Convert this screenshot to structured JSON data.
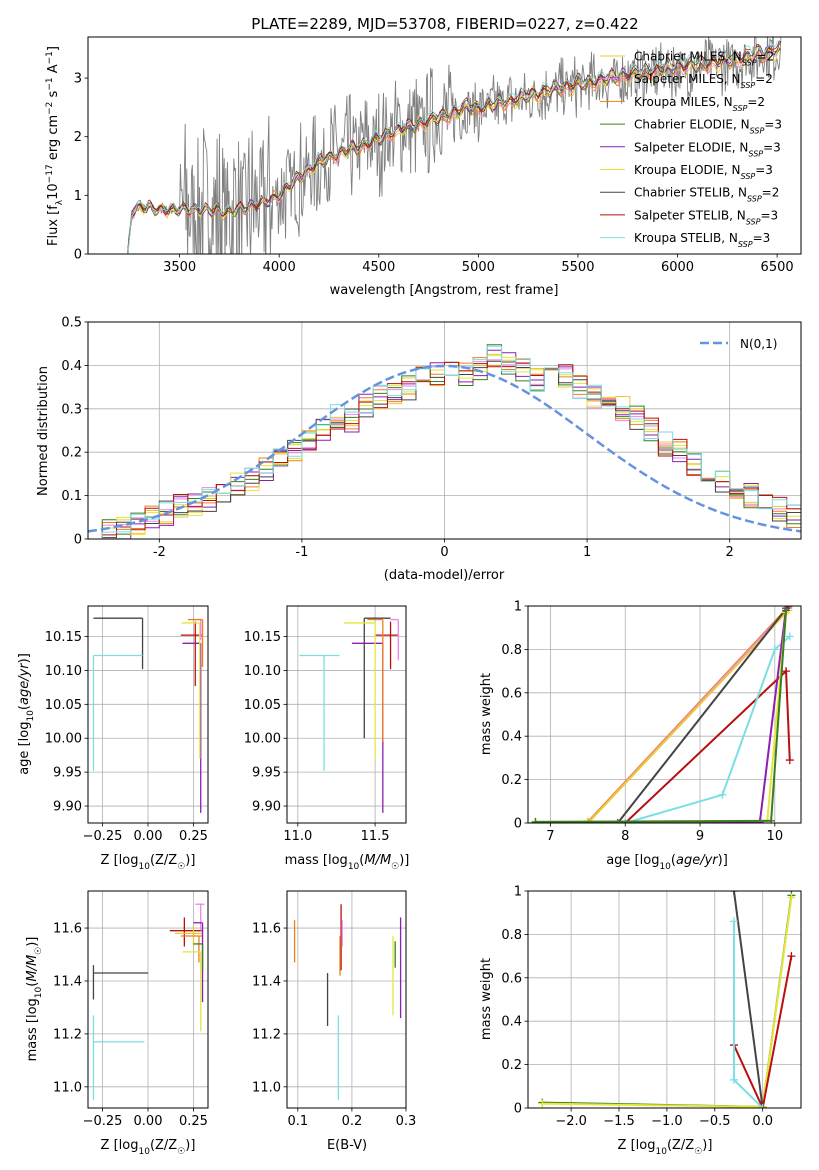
{
  "figure": {
    "title": "PLATE=2289, MJD=53708, FIBERID=0227, z=0.422"
  },
  "colors": {
    "Chabrier MILES": "#e7cc2f",
    "Salpeter MILES": "#ee82ee",
    "Kroupa MILES": "#ef7f1a",
    "Chabrier ELODIE": "#3a7d22",
    "Salpeter ELODIE": "#8d1eb0",
    "Kroupa ELODIE": "#e5e63a",
    "Chabrier STELIB": "#444444",
    "Salpeter STELIB": "#b80f0f",
    "Kroupa STELIB": "#7adfe3",
    "gauss": "#6693e0",
    "grid": "#b0b0b0"
  },
  "chart_data": [
    {
      "id": "spectrum",
      "type": "line",
      "title": "PLATE=2289, MJD=53708, FIBERID=0227, z=0.422",
      "xlabel": "wavelength [Angstrom, rest frame]",
      "ylabel": "Flux [f_λ 10^-17 erg cm^-2 s^-1 A^-1]",
      "xlim": [
        3040,
        6620
      ],
      "ylim": [
        0,
        3.7
      ],
      "xticks": [
        3500,
        4000,
        4500,
        5000,
        5500,
        6000,
        6500
      ],
      "yticks": [
        0,
        1,
        2,
        3
      ],
      "grid": false,
      "legend": "top-right",
      "model_anchors": {
        "x": [
          3240,
          3260,
          3300,
          3400,
          3500,
          3600,
          3700,
          3750,
          3800,
          3850,
          3900,
          3950,
          4000,
          4100,
          4200,
          4300,
          4400,
          4500,
          4600,
          4700,
          4800,
          4850,
          4900,
          4950,
          5000,
          5100,
          5200,
          5300,
          5400,
          5500,
          5600,
          5700,
          5800,
          5900,
          6000,
          6100,
          6200,
          6300,
          6400,
          6500
        ],
        "y": [
          0.0,
          0.72,
          0.8,
          0.75,
          0.76,
          0.75,
          0.73,
          0.7,
          0.78,
          0.8,
          0.85,
          0.9,
          1.0,
          1.3,
          1.55,
          1.7,
          1.8,
          1.95,
          2.1,
          2.2,
          2.3,
          2.35,
          2.42,
          2.5,
          2.45,
          2.55,
          2.62,
          2.72,
          2.8,
          2.88,
          2.92,
          3.0,
          3.05,
          3.1,
          3.17,
          3.2,
          3.25,
          3.3,
          3.38,
          3.45
        ]
      },
      "legend_entries": [
        {
          "label": "Chabrier MILES, N_SSP=2",
          "name": "Chabrier MILES",
          "nssp": "2"
        },
        {
          "label": "Salpeter MILES, N_SSP=2",
          "name": "Salpeter MILES",
          "nssp": "2"
        },
        {
          "label": "Kroupa MILES, N_SSP=2",
          "name": "Kroupa MILES",
          "nssp": "2"
        },
        {
          "label": "Chabrier ELODIE, N_SSP=3",
          "name": "Chabrier ELODIE",
          "nssp": "3"
        },
        {
          "label": "Salpeter ELODIE, N_SSP=3",
          "name": "Salpeter ELODIE",
          "nssp": "3"
        },
        {
          "label": "Kroupa ELODIE, N_SSP=3",
          "name": "Kroupa ELODIE",
          "nssp": "3"
        },
        {
          "label": "Chabrier STELIB, N_SSP=2",
          "name": "Chabrier STELIB",
          "nssp": "2"
        },
        {
          "label": "Salpeter STELIB, N_SSP=3",
          "name": "Salpeter STELIB",
          "nssp": "3"
        },
        {
          "label": "Kroupa STELIB, N_SSP=3",
          "name": "Kroupa STELIB",
          "nssp": "3"
        }
      ]
    },
    {
      "id": "residuals",
      "type": "line",
      "xlabel": "(data-model)/error",
      "ylabel": "Normed distribution",
      "xlim": [
        -2.5,
        2.5
      ],
      "ylim": [
        0,
        0.5
      ],
      "xticks": [
        -2,
        -1,
        0,
        1,
        2
      ],
      "yticks": [
        0.0,
        0.1,
        0.2,
        0.3,
        0.4,
        0.5
      ],
      "grid": true,
      "legend": "top-right",
      "gauss_label": "N(0,1)",
      "bin_width": 0.1,
      "hist_first_bin_left": -2.5,
      "hist": [
        0.02,
        0.02,
        0.03,
        0.04,
        0.05,
        0.06,
        0.08,
        0.08,
        0.09,
        0.11,
        0.13,
        0.14,
        0.16,
        0.18,
        0.2,
        0.22,
        0.25,
        0.28,
        0.27,
        0.31,
        0.33,
        0.34,
        0.35,
        0.37,
        0.38,
        0.4,
        0.38,
        0.39,
        0.42,
        0.4,
        0.39,
        0.37,
        0.41,
        0.38,
        0.35,
        0.33,
        0.32,
        0.3,
        0.28,
        0.25,
        0.22,
        0.2,
        0.17,
        0.15,
        0.13,
        0.12,
        0.1,
        0.08,
        0.07,
        0.05
      ]
    },
    {
      "id": "age-vs-z",
      "type": "scatter",
      "xlabel": "Z [log10(Z/Z☉)]",
      "ylabel": "age  [log10(age/yr)]",
      "xlim": [
        -0.33,
        0.33
      ],
      "ylim": [
        9.875,
        10.195
      ],
      "xticks": [
        -0.25,
        0.0,
        0.25
      ],
      "xticklabels": [
        "−0.25",
        "0.00",
        "0.25"
      ],
      "yticks": [
        9.9,
        9.95,
        10.0,
        10.05,
        10.1,
        10.15
      ],
      "yticklabels": [
        "9.90",
        "9.95",
        "10.00",
        "10.05",
        "10.10",
        "10.15"
      ],
      "grid": true,
      "points": [
        {
          "model": "Chabrier STELIB",
          "x": -0.03,
          "xerr": [
            0.27,
            0.0
          ],
          "y": 10.177,
          "yerr": [
            0.075,
            0.0
          ]
        },
        {
          "model": "Kroupa STELIB",
          "x": -0.3,
          "xerr": [
            0.0,
            0.27
          ],
          "y": 10.122,
          "yerr": [
            0.17,
            0.0
          ]
        },
        {
          "model": "Salpeter STELIB",
          "x": 0.26,
          "xerr": [
            0.08,
            0.04
          ],
          "y": 10.152,
          "yerr": [
            0.075,
            0.02
          ]
        },
        {
          "model": "Salpeter ELODIE",
          "x": 0.29,
          "xerr": [
            0.1,
            0.0
          ],
          "y": 10.14,
          "yerr": [
            0.25,
            0.0
          ]
        },
        {
          "model": "Kroupa ELODIE",
          "x": 0.285,
          "xerr": [
            0.1,
            0.0
          ],
          "y": 10.17,
          "yerr": [
            0.2,
            0.0
          ]
        },
        {
          "model": "Salpeter MILES",
          "x": 0.29,
          "xerr": [
            0.05,
            0.0
          ],
          "y": 10.175,
          "yerr": [
            0.03,
            0.0
          ]
        },
        {
          "model": "Kroupa MILES",
          "x": 0.3,
          "xerr": [
            0.08,
            0.0
          ],
          "y": 10.175,
          "yerr": [
            0.07,
            0.0
          ]
        }
      ]
    },
    {
      "id": "age-vs-mass",
      "type": "scatter",
      "xlabel": "mass [log10(M/M☉)]",
      "ylabel": "",
      "xlim": [
        10.93,
        11.7
      ],
      "ylim": [
        9.875,
        10.195
      ],
      "xticks": [
        11.0,
        11.5
      ],
      "xticklabels": [
        "11.0",
        "11.5"
      ],
      "yticks": [
        9.9,
        9.95,
        10.0,
        10.05,
        10.1,
        10.15
      ],
      "yticklabels": [
        "9.90",
        "9.95",
        "10.00",
        "10.05",
        "10.10",
        "10.15"
      ],
      "grid": true,
      "points": [
        {
          "model": "Chabrier STELIB",
          "x": 11.43,
          "xerr": [
            0.0,
            0.17
          ],
          "y": 10.177,
          "yerr": [
            0.177,
            0.0
          ]
        },
        {
          "model": "Kroupa STELIB",
          "x": 11.17,
          "xerr": [
            0.16,
            0.1
          ],
          "y": 10.122,
          "yerr": [
            0.17,
            0.0
          ]
        },
        {
          "model": "Salpeter STELIB",
          "x": 11.6,
          "xerr": [
            0.1,
            0.05
          ],
          "y": 10.152,
          "yerr": [
            0.05,
            0.02
          ]
        },
        {
          "model": "Salpeter ELODIE",
          "x": 11.55,
          "xerr": [
            0.2,
            0.0
          ],
          "y": 10.14,
          "yerr": [
            0.25,
            0.0
          ]
        },
        {
          "model": "Kroupa ELODIE",
          "x": 11.5,
          "xerr": [
            0.2,
            0.0
          ],
          "y": 10.17,
          "yerr": [
            0.2,
            0.0
          ]
        },
        {
          "model": "Salpeter MILES",
          "x": 11.65,
          "xerr": [
            0.05,
            0.0
          ],
          "y": 10.175,
          "yerr": [
            0.06,
            0.0
          ]
        },
        {
          "model": "Kroupa MILES",
          "x": 11.55,
          "xerr": [
            0.1,
            0.0
          ],
          "y": 10.175,
          "yerr": [
            0.18,
            0.0
          ]
        }
      ]
    },
    {
      "id": "weight-vs-age",
      "type": "line",
      "xlabel": "age  [log10(age/yr)]",
      "ylabel": "mass weight",
      "xlim": [
        6.7,
        10.35
      ],
      "ylim": [
        0,
        1
      ],
      "xticks": [
        7,
        8,
        9,
        10
      ],
      "yticks": [
        0.0,
        0.2,
        0.4,
        0.6,
        0.8,
        1.0
      ],
      "grid": true,
      "series": [
        {
          "model": "Kroupa MILES",
          "points": [
            [
              6.8,
              0.0
            ],
            [
              7.5,
              0.005
            ],
            [
              10.18,
              0.995
            ]
          ]
        },
        {
          "model": "Salpeter MILES",
          "points": [
            [
              7.5,
              0.0
            ],
            [
              10.18,
              0.99
            ]
          ]
        },
        {
          "model": "Chabrier MILES",
          "points": [
            [
              7.5,
              0.0
            ],
            [
              10.18,
              0.98
            ]
          ]
        },
        {
          "model": "Chabrier STELIB",
          "points": [
            [
              7.9,
              0.0
            ],
            [
              10.18,
              1.0
            ]
          ]
        },
        {
          "model": "Salpeter STELIB",
          "points": [
            [
              8.0,
              0.0
            ],
            [
              10.15,
              0.7
            ],
            [
              10.2,
              0.29
            ]
          ]
        },
        {
          "model": "Kroupa STELIB",
          "points": [
            [
              8.0,
              0.0
            ],
            [
              9.3,
              0.13
            ],
            [
              10.0,
              0.8
            ],
            [
              10.2,
              0.86
            ]
          ]
        },
        {
          "model": "Salpeter ELODIE",
          "points": [
            [
              6.8,
              0.0
            ],
            [
              9.8,
              0.005
            ],
            [
              10.15,
              0.99
            ]
          ]
        },
        {
          "model": "Kroupa ELODIE",
          "points": [
            [
              6.8,
              0.005
            ],
            [
              9.9,
              0.01
            ],
            [
              10.15,
              0.97
            ]
          ]
        },
        {
          "model": "Chabrier ELODIE",
          "points": [
            [
              6.8,
              0.005
            ],
            [
              9.95,
              0.01
            ],
            [
              10.15,
              0.98
            ]
          ]
        }
      ]
    },
    {
      "id": "mass-vs-z",
      "type": "scatter",
      "xlabel": "Z [log10(Z/Z☉)]",
      "ylabel": "mass [log10(M/M☉)]",
      "xlim": [
        -0.33,
        0.33
      ],
      "ylim": [
        10.92,
        11.74
      ],
      "xticks": [
        -0.25,
        0.0,
        0.25
      ],
      "xticklabels": [
        "−0.25",
        "0.00",
        "0.25"
      ],
      "yticks": [
        11.0,
        11.2,
        11.4,
        11.6
      ],
      "yticklabels": [
        "11.0",
        "11.2",
        "11.4",
        "11.6"
      ],
      "grid": true,
      "points": [
        {
          "model": "Chabrier STELIB",
          "x": -0.3,
          "xerr": [
            0.0,
            0.3
          ],
          "y": 11.43,
          "yerr": [
            0.1,
            0.03
          ]
        },
        {
          "model": "Kroupa STELIB",
          "x": -0.3,
          "xerr": [
            0.0,
            0.28
          ],
          "y": 11.17,
          "yerr": [
            0.22,
            0.1
          ]
        },
        {
          "model": "Salpeter STELIB",
          "x": 0.2,
          "xerr": [
            0.08,
            0.1
          ],
          "y": 11.59,
          "yerr": [
            0.06,
            0.05
          ]
        },
        {
          "model": "Chabrier MILES",
          "x": 0.25,
          "xerr": [
            0.1,
            0.05
          ],
          "y": 11.58,
          "yerr": [
            0.05,
            0.03
          ]
        },
        {
          "model": "Kroupa MILES",
          "x": 0.28,
          "xerr": [
            0.1,
            0.02
          ],
          "y": 11.57,
          "yerr": [
            0.1,
            0.0
          ]
        },
        {
          "model": "Salpeter MILES",
          "x": 0.29,
          "xerr": [
            0.03,
            0.02
          ],
          "y": 11.69,
          "yerr": [
            0.1,
            0.0
          ]
        },
        {
          "model": "Salpeter ELODIE",
          "x": 0.3,
          "xerr": [
            0.05,
            0.0
          ],
          "y": 11.62,
          "yerr": [
            0.3,
            0.0
          ]
        },
        {
          "model": "Kroupa ELODIE",
          "x": 0.29,
          "xerr": [
            0.1,
            0.0
          ],
          "y": 11.51,
          "yerr": [
            0.3,
            0.0
          ]
        },
        {
          "model": "Chabrier ELODIE",
          "x": 0.3,
          "xerr": [
            0.05,
            0.0
          ],
          "y": 11.54,
          "yerr": [
            0.1,
            0.0
          ]
        }
      ]
    },
    {
      "id": "mass-vs-ebv",
      "type": "scatter",
      "xlabel": "E(B-V)",
      "ylabel": "",
      "xlim": [
        0.08,
        0.3
      ],
      "ylim": [
        10.92,
        11.74
      ],
      "xticks": [
        0.1,
        0.2,
        0.3
      ],
      "xticklabels": [
        "0.1",
        "0.2",
        "0.3"
      ],
      "yticks": [
        11.0,
        11.2,
        11.4,
        11.6
      ],
      "yticklabels": [
        "11.0",
        "11.2",
        "11.4",
        "11.6"
      ],
      "grid": true,
      "points": [
        {
          "model": "Kroupa MILES",
          "x": 0.094,
          "yerr": [
            0.08,
            0.08
          ],
          "y": 11.55
        },
        {
          "model": "Chabrier STELIB",
          "x": 0.155,
          "yerr": [
            0.12,
            0.08
          ],
          "y": 11.35
        },
        {
          "model": "Kroupa STELIB",
          "x": 0.175,
          "yerr": [
            0.22,
            0.1
          ],
          "y": 11.17
        },
        {
          "model": "Salpeter STELIB",
          "x": 0.18,
          "yerr": [
            0.15,
            0.1
          ],
          "y": 11.59
        },
        {
          "model": "Kroupa MILES",
          "x": 0.178,
          "yerr": [
            0.15,
            0.0
          ],
          "y": 11.57
        },
        {
          "model": "Salpeter MILES",
          "x": 0.182,
          "yerr": [
            0.1,
            0.0
          ],
          "y": 11.63
        },
        {
          "model": "Kroupa ELODIE",
          "x": 0.276,
          "yerr": [
            0.3,
            0.0
          ],
          "y": 11.57
        },
        {
          "model": "Chabrier ELODIE",
          "x": 0.28,
          "yerr": [
            0.05,
            0.05
          ],
          "y": 11.5
        },
        {
          "model": "Salpeter ELODIE",
          "x": 0.29,
          "yerr": [
            0.38,
            0.0
          ],
          "y": 11.64
        }
      ]
    },
    {
      "id": "weight-vs-z",
      "type": "line",
      "xlabel": "Z [log10(Z/Z☉)]",
      "ylabel": "mass weight",
      "xlim": [
        -2.45,
        0.4
      ],
      "ylim": [
        0,
        1
      ],
      "xticks": [
        -2.0,
        -1.5,
        -1.0,
        -0.5,
        0.0
      ],
      "xticklabels": [
        "−2.0",
        "−1.5",
        "−1.0",
        "−0.5",
        "0.0"
      ],
      "yticks": [
        0.0,
        0.2,
        0.4,
        0.6,
        0.8,
        1.0
      ],
      "grid": true,
      "series": [
        {
          "model": "Chabrier ELODIE",
          "points": [
            [
              -2.3,
              0.025
            ],
            [
              0.0,
              0.005
            ],
            [
              0.3,
              0.98
            ]
          ]
        },
        {
          "model": "Kroupa ELODIE",
          "points": [
            [
              -2.3,
              0.02
            ],
            [
              0.0,
              0.005
            ],
            [
              0.3,
              0.97
            ]
          ]
        },
        {
          "model": "Chabrier STELIB",
          "points": [
            [
              -0.3,
              1.0
            ],
            [
              0.0,
              0.0
            ]
          ]
        },
        {
          "model": "Salpeter STELIB",
          "points": [
            [
              -0.3,
              0.29
            ],
            [
              0.0,
              0.0
            ],
            [
              0.3,
              0.7
            ]
          ]
        },
        {
          "model": "Kroupa STELIB",
          "points": [
            [
              -0.3,
              0.86
            ],
            [
              -0.3,
              0.13
            ],
            [
              0.0,
              0.0
            ]
          ]
        }
      ]
    }
  ]
}
